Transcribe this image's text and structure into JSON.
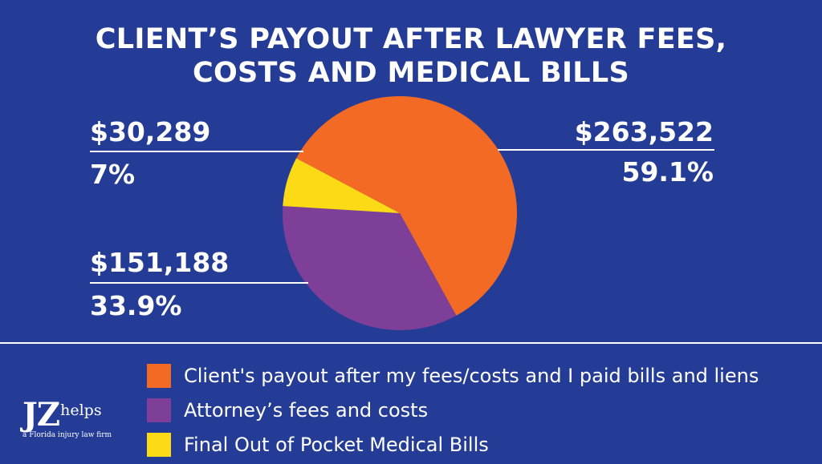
{
  "chart_data": {
    "type": "pie",
    "title": [
      "CLIENT’S PAYOUT AFTER LAWYER FEES,",
      "COSTS AND MEDICAL BILLS"
    ],
    "slices": [
      {
        "label": "Client's payout after my fees/costs and I paid bills and liens",
        "value": 263522,
        "value_label": "$263,522",
        "percent_label": "59.1%",
        "color": "#f26a24"
      },
      {
        "label": "Attorney’s fees and costs",
        "value": 151188,
        "value_label": "$151,188",
        "percent_label": "33.9%",
        "color": "#7d3f98"
      },
      {
        "label": "Final Out of Pocket Medical Bills",
        "value": 30289,
        "value_label": "$30,289",
        "percent_label": "7%",
        "color": "#fcdb16"
      }
    ],
    "legend_placement": "bottom"
  },
  "logo": {
    "main": "JZ",
    "sub": "helps",
    "tagline": "a Florida injury law firm"
  }
}
